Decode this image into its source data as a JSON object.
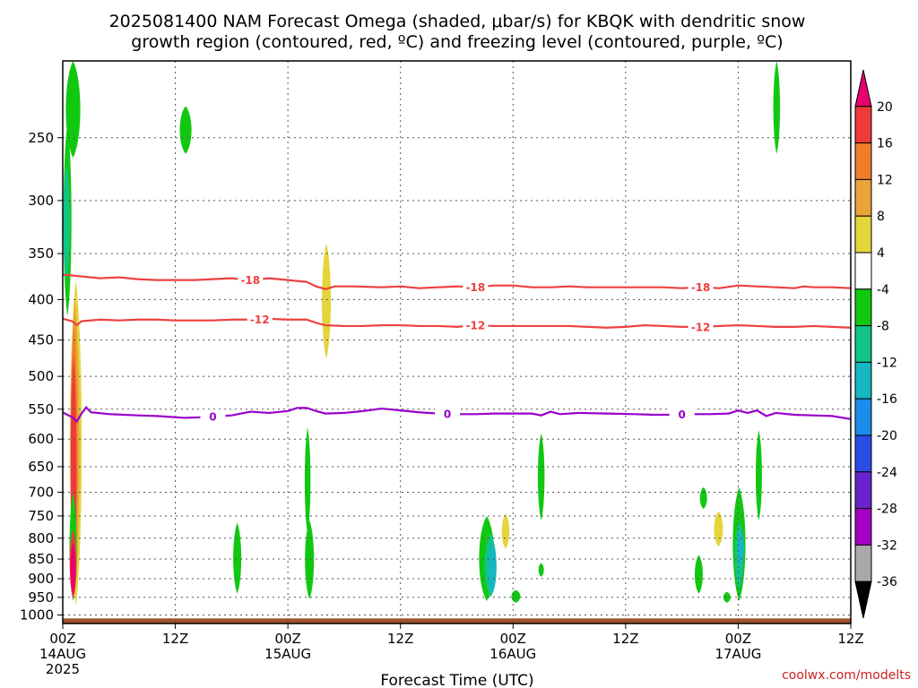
{
  "title": {
    "line1": "2025081400 NAM Forecast Omega (shaded, μbar/s) for KBQK with dendritic snow",
    "line2": "growth region (contoured, red, ºC) and freezing level (contoured, purple, ºC)"
  },
  "credit": "coolwx.com/modelts",
  "chart_data": {
    "type": "heatmap",
    "xlabel": "Forecast Time (UTC)",
    "xlim": [
      0,
      84
    ],
    "ylim": [
      1025,
      200
    ],
    "y_scale": "log",
    "x_ticks": [
      {
        "x": 0,
        "label": "00Z",
        "sub": "14AUG",
        "sub2": "2025"
      },
      {
        "x": 12,
        "label": "12Z",
        "sub": "",
        "sub2": ""
      },
      {
        "x": 24,
        "label": "00Z",
        "sub": "15AUG",
        "sub2": ""
      },
      {
        "x": 36,
        "label": "12Z",
        "sub": "",
        "sub2": ""
      },
      {
        "x": 48,
        "label": "00Z",
        "sub": "16AUG",
        "sub2": ""
      },
      {
        "x": 60,
        "label": "12Z",
        "sub": "",
        "sub2": ""
      },
      {
        "x": 72,
        "label": "00Z",
        "sub": "17AUG",
        "sub2": ""
      },
      {
        "x": 84,
        "label": "12Z",
        "sub": "",
        "sub2": ""
      }
    ],
    "y_ticks": [
      250,
      300,
      350,
      400,
      450,
      500,
      550,
      600,
      650,
      700,
      750,
      800,
      850,
      900,
      950,
      1000
    ],
    "grid": true,
    "colorbar": {
      "ticks": [
        "20",
        "16",
        "12",
        "8",
        "4",
        "-4",
        "-8",
        "-12",
        "-16",
        "-20",
        "-24",
        "-28",
        "-32",
        "-36"
      ],
      "colors": [
        "#e8006e",
        "#ee3a3a",
        "#f07d2a",
        "#e9a53b",
        "#e5d53c",
        "#ffffff",
        "#11c811",
        "#11c48a",
        "#15b7c2",
        "#1b8cea",
        "#2a4de8",
        "#6a22cc",
        "#a300c4",
        "#a9a9a9",
        "#000000"
      ]
    },
    "contours": [
      {
        "kind": "dgz",
        "label": "-18",
        "color": "#ee4040",
        "points": [
          [
            0,
            372
          ],
          [
            2,
            374
          ],
          [
            4,
            376
          ],
          [
            6,
            375
          ],
          [
            8,
            377
          ],
          [
            10,
            378
          ],
          [
            12,
            378
          ],
          [
            14,
            378
          ],
          [
            16,
            377
          ],
          [
            18,
            376
          ],
          [
            20,
            378
          ],
          [
            22,
            376
          ],
          [
            24,
            378
          ],
          [
            26,
            380
          ],
          [
            27,
            385
          ],
          [
            28,
            388
          ],
          [
            29,
            385
          ],
          [
            31,
            385
          ],
          [
            34,
            386
          ],
          [
            36,
            385
          ],
          [
            38,
            387
          ],
          [
            40,
            386
          ],
          [
            42,
            385
          ],
          [
            44,
            386
          ],
          [
            46,
            384
          ],
          [
            48,
            384
          ],
          [
            50,
            386
          ],
          [
            52,
            386
          ],
          [
            54,
            385
          ],
          [
            56,
            386
          ],
          [
            58,
            386
          ],
          [
            60,
            386
          ],
          [
            62,
            386
          ],
          [
            64,
            386
          ],
          [
            66,
            387
          ],
          [
            68,
            386
          ],
          [
            70,
            387
          ],
          [
            72,
            384
          ],
          [
            74,
            385
          ],
          [
            76,
            386
          ],
          [
            78,
            387
          ],
          [
            79,
            385
          ],
          [
            80,
            386
          ],
          [
            82,
            386
          ],
          [
            84,
            387
          ]
        ],
        "label_x": [
          20,
          44,
          68
        ]
      },
      {
        "kind": "dgz",
        "label": "-12",
        "color": "#ee4040",
        "points": [
          [
            0,
            423
          ],
          [
            1,
            426
          ],
          [
            1.5,
            431
          ],
          [
            2,
            426
          ],
          [
            4,
            424
          ],
          [
            6,
            425
          ],
          [
            8,
            424
          ],
          [
            10,
            424
          ],
          [
            12,
            425
          ],
          [
            14,
            425
          ],
          [
            16,
            425
          ],
          [
            18,
            424
          ],
          [
            20,
            424
          ],
          [
            22,
            423
          ],
          [
            24,
            424
          ],
          [
            26,
            424
          ],
          [
            27,
            428
          ],
          [
            28,
            431
          ],
          [
            30,
            432
          ],
          [
            32,
            432
          ],
          [
            34,
            431
          ],
          [
            36,
            431
          ],
          [
            38,
            432
          ],
          [
            40,
            432
          ],
          [
            42,
            433
          ],
          [
            44,
            431
          ],
          [
            46,
            432
          ],
          [
            48,
            432
          ],
          [
            50,
            432
          ],
          [
            52,
            432
          ],
          [
            54,
            432
          ],
          [
            56,
            433
          ],
          [
            58,
            434
          ],
          [
            60,
            433
          ],
          [
            62,
            431
          ],
          [
            64,
            432
          ],
          [
            66,
            433
          ],
          [
            68,
            433
          ],
          [
            70,
            432
          ],
          [
            72,
            431
          ],
          [
            74,
            432
          ],
          [
            76,
            433
          ],
          [
            78,
            433
          ],
          [
            80,
            432
          ],
          [
            82,
            433
          ],
          [
            84,
            434
          ]
        ],
        "label_x": [
          21,
          44,
          68
        ]
      },
      {
        "kind": "freezing",
        "label": "0",
        "color": "#9900cc",
        "points": [
          [
            0,
            555
          ],
          [
            1,
            563
          ],
          [
            1.5,
            570
          ],
          [
            2,
            557
          ],
          [
            2.5,
            547
          ],
          [
            3,
            555
          ],
          [
            5,
            558
          ],
          [
            8,
            560
          ],
          [
            10,
            561
          ],
          [
            13,
            564
          ],
          [
            15,
            563
          ],
          [
            18,
            560
          ],
          [
            20,
            554
          ],
          [
            22,
            556
          ],
          [
            24,
            553
          ],
          [
            25,
            548
          ],
          [
            26,
            548
          ],
          [
            27,
            553
          ],
          [
            28,
            557
          ],
          [
            30,
            556
          ],
          [
            32,
            553
          ],
          [
            34,
            549
          ],
          [
            36,
            552
          ],
          [
            38,
            555
          ],
          [
            40,
            557
          ],
          [
            42,
            558
          ],
          [
            44,
            558
          ],
          [
            46,
            557
          ],
          [
            48,
            557
          ],
          [
            50,
            557
          ],
          [
            51,
            560
          ],
          [
            52,
            554
          ],
          [
            53,
            558
          ],
          [
            55,
            556
          ],
          [
            58,
            557
          ],
          [
            61,
            558
          ],
          [
            63,
            559
          ],
          [
            65,
            559
          ],
          [
            67,
            558
          ],
          [
            69,
            558
          ],
          [
            71,
            557
          ],
          [
            72,
            552
          ],
          [
            73,
            556
          ],
          [
            74,
            552
          ],
          [
            75,
            561
          ],
          [
            76,
            556
          ],
          [
            78,
            559
          ],
          [
            80,
            560
          ],
          [
            82,
            561
          ],
          [
            84,
            566
          ]
        ],
        "label_x": [
          16,
          41,
          66
        ]
      }
    ],
    "omega_regions": [
      {
        "t": 1.1,
        "p_top": 200,
        "p_bottom": 265,
        "w": 1.2,
        "color": "#11c811"
      },
      {
        "t": 0.5,
        "p_top": 240,
        "p_bottom": 420,
        "w": 0.5,
        "color": "#11c811"
      },
      {
        "t": 0.4,
        "p_top": 270,
        "p_bottom": 380,
        "w": 0.3,
        "color": "#11c48a"
      },
      {
        "t": 13.1,
        "p_top": 228,
        "p_bottom": 262,
        "w": 0.9,
        "color": "#11c811"
      },
      {
        "t": 28.1,
        "p_top": 340,
        "p_bottom": 475,
        "w": 0.6,
        "color": "#e5d53c"
      },
      {
        "t": 1.4,
        "p_top": 378,
        "p_bottom": 975,
        "w": 0.9,
        "color": "#e5d53c"
      },
      {
        "t": 1.3,
        "p_top": 400,
        "p_bottom": 945,
        "w": 0.6,
        "color": "#e9a53b"
      },
      {
        "t": 1.2,
        "p_top": 430,
        "p_bottom": 935,
        "w": 0.4,
        "color": "#f07d2a"
      },
      {
        "t": 1.15,
        "p_top": 470,
        "p_bottom": 930,
        "w": 0.25,
        "color": "#ee3a3a"
      },
      {
        "t": 1.1,
        "p_top": 700,
        "p_bottom": 960,
        "w": 0.4,
        "color": "#11c811"
      },
      {
        "t": 1.1,
        "p_top": 780,
        "p_bottom": 955,
        "w": 0.35,
        "color": "#ee3a3a"
      },
      {
        "t": 1.1,
        "p_top": 810,
        "p_bottom": 940,
        "w": 0.2,
        "color": "#e8006e"
      },
      {
        "t": 18.6,
        "p_top": 765,
        "p_bottom": 940,
        "w": 0.5,
        "color": "#11c811"
      },
      {
        "t": 26.1,
        "p_top": 580,
        "p_bottom": 790,
        "w": 0.25,
        "color": "#11c811"
      },
      {
        "t": 26.3,
        "p_top": 760,
        "p_bottom": 955,
        "w": 0.6,
        "color": "#11c811"
      },
      {
        "t": 45.2,
        "p_top": 750,
        "p_bottom": 960,
        "w": 1.3,
        "color": "#11c811"
      },
      {
        "t": 45.6,
        "p_top": 790,
        "p_bottom": 950,
        "w": 0.9,
        "color": "#11c48a"
      },
      {
        "t": 45.8,
        "p_top": 810,
        "p_bottom": 940,
        "w": 0.5,
        "color": "#15b7c2"
      },
      {
        "t": 47.2,
        "p_top": 745,
        "p_bottom": 825,
        "w": 0.45,
        "color": "#e5d53c"
      },
      {
        "t": 48.3,
        "p_top": 930,
        "p_bottom": 965,
        "w": 0.6,
        "color": "#11c811"
      },
      {
        "t": 51.0,
        "p_top": 590,
        "p_bottom": 760,
        "w": 0.35,
        "color": "#11c811"
      },
      {
        "t": 51.0,
        "p_top": 860,
        "p_bottom": 895,
        "w": 0.2,
        "color": "#11c811"
      },
      {
        "t": 68.3,
        "p_top": 690,
        "p_bottom": 735,
        "w": 0.4,
        "color": "#11c811"
      },
      {
        "t": 67.8,
        "p_top": 840,
        "p_bottom": 940,
        "w": 0.5,
        "color": "#11c811"
      },
      {
        "t": 69.9,
        "p_top": 740,
        "p_bottom": 820,
        "w": 0.6,
        "color": "#e5d53c"
      },
      {
        "t": 72.1,
        "p_top": 690,
        "p_bottom": 960,
        "w": 1.0,
        "color": "#11c811"
      },
      {
        "t": 72.1,
        "p_top": 760,
        "p_bottom": 930,
        "w": 0.55,
        "color": "#11c48a"
      },
      {
        "t": 72.3,
        "p_top": 780,
        "p_bottom": 870,
        "w": 0.3,
        "color": "#15b7c2"
      },
      {
        "t": 74.2,
        "p_top": 585,
        "p_bottom": 760,
        "w": 0.3,
        "color": "#11c811"
      },
      {
        "t": 70.8,
        "p_top": 935,
        "p_bottom": 965,
        "w": 0.4,
        "color": "#11c811"
      },
      {
        "t": 76.1,
        "p_top": 200,
        "p_bottom": 262,
        "w": 0.35,
        "color": "#11c811"
      }
    ],
    "terrain": {
      "p_top": 1010,
      "color": "#a0522d"
    }
  }
}
